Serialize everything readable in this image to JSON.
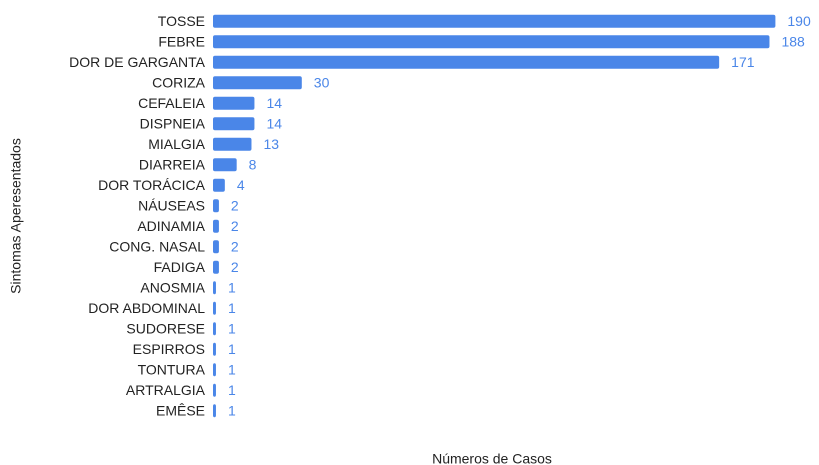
{
  "chart_data": {
    "type": "bar",
    "orientation": "horizontal",
    "x_label": "Números de Casos",
    "y_label": "Sintomas Aperesentados",
    "categories": [
      "TOSSE",
      "FEBRE",
      "DOR DE GARGANTA",
      "CORIZA",
      "CEFALEIA",
      "DISPNEIA",
      "MIALGIA",
      "DIARREIA",
      "DOR TORÁCICA",
      "NÁUSEAS",
      "ADINAMIA",
      "CONG. NASAL",
      "FADIGA",
      "ANOSMIA",
      "DOR ABDOMINAL",
      "SUDORESE",
      "ESPIRROS",
      "TONTURA",
      "ARTRALGIA",
      "EMÊSE"
    ],
    "values": [
      190,
      188,
      171,
      30,
      14,
      14,
      13,
      8,
      4,
      2,
      2,
      2,
      2,
      1,
      1,
      1,
      1,
      1,
      1,
      1
    ],
    "color": "#4a86e8",
    "xlim": [
      0,
      200
    ]
  }
}
